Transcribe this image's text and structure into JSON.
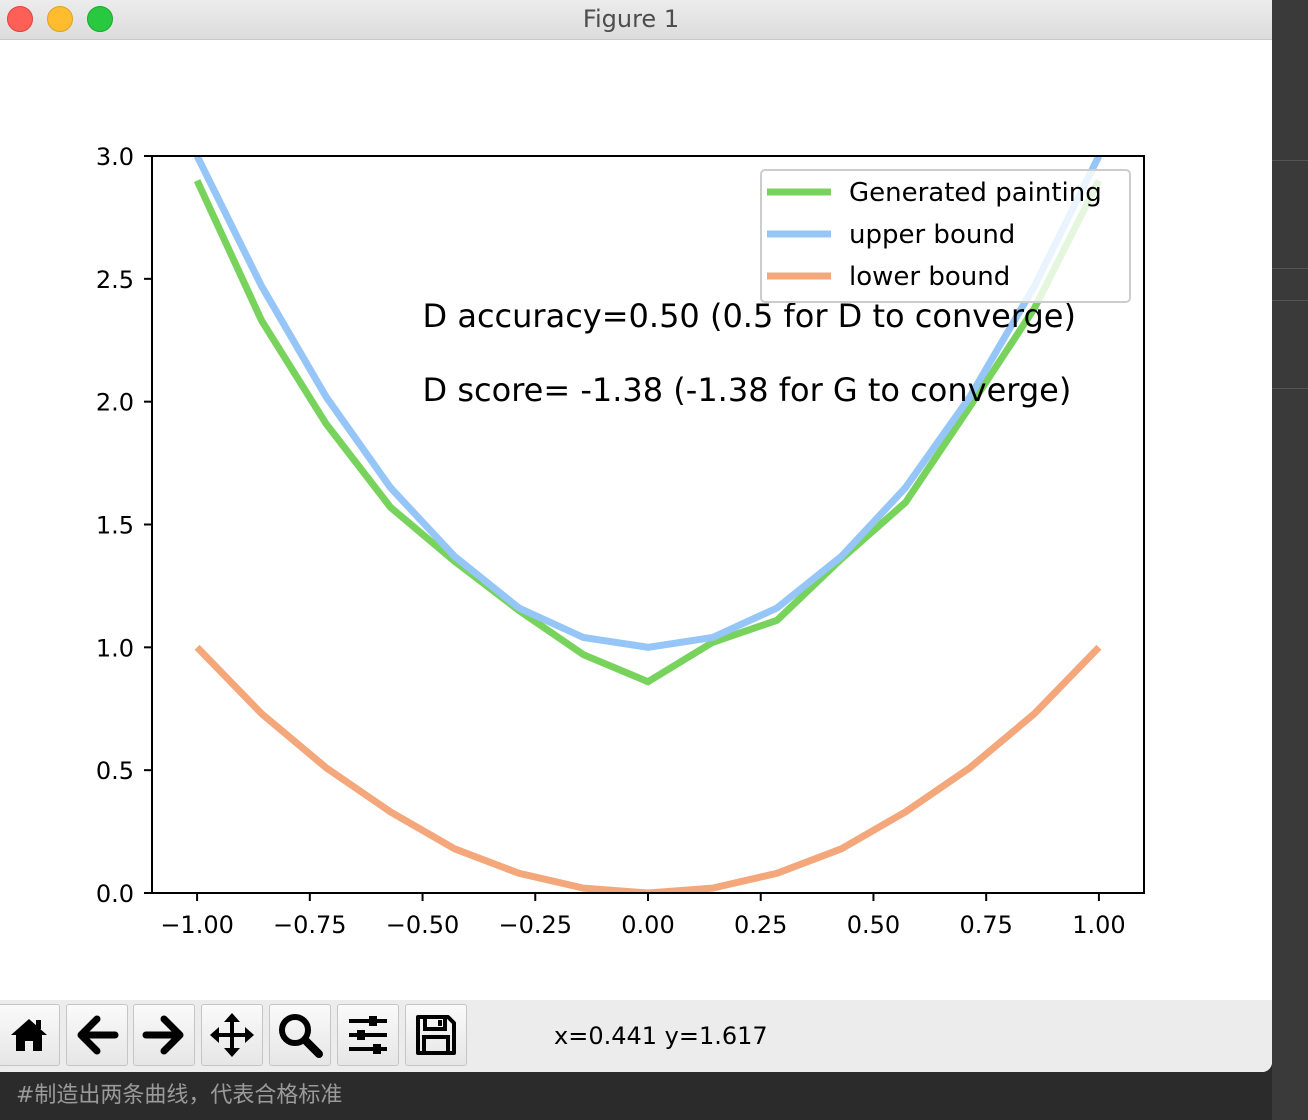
{
  "window": {
    "title": "Figure 1"
  },
  "toolbar": {
    "buttons": [
      {
        "name": "home-button",
        "icon": "home-icon"
      },
      {
        "name": "back-button",
        "icon": "arrow-left-icon"
      },
      {
        "name": "forward-button",
        "icon": "arrow-right-icon"
      },
      {
        "name": "pan-button",
        "icon": "move-icon"
      },
      {
        "name": "zoom-button",
        "icon": "search-icon"
      },
      {
        "name": "configure-button",
        "icon": "sliders-icon"
      },
      {
        "name": "save-button",
        "icon": "save-icon"
      }
    ],
    "coordinates": "x=0.441 y=1.617"
  },
  "editor_comment": "#制造出两条曲线，代表合格标准",
  "chart_data": {
    "type": "line",
    "title": "",
    "xlabel": "",
    "ylabel": "",
    "xlim": [
      -1.1,
      1.1
    ],
    "ylim": [
      0,
      3
    ],
    "xticks": [
      "−1.00",
      "−0.75",
      "−0.50",
      "−0.25",
      "0.00",
      "0.25",
      "0.50",
      "0.75",
      "1.00"
    ],
    "xtick_values": [
      -1,
      -0.75,
      -0.5,
      -0.25,
      0,
      0.25,
      0.5,
      0.75,
      1
    ],
    "yticks": [
      "0.0",
      "0.5",
      "1.0",
      "1.5",
      "2.0",
      "2.5",
      "3.0"
    ],
    "ytick_values": [
      0,
      0.5,
      1,
      1.5,
      2,
      2.5,
      3
    ],
    "x": [
      -1.0,
      -0.857,
      -0.714,
      -0.571,
      -0.429,
      -0.286,
      -0.143,
      0.0,
      0.143,
      0.286,
      0.429,
      0.571,
      0.714,
      0.857,
      1.0
    ],
    "series": [
      {
        "name": "Generated painting",
        "color": "#77d35c",
        "values": [
          2.9,
          2.33,
          1.91,
          1.57,
          1.35,
          1.15,
          0.97,
          0.86,
          1.02,
          1.11,
          1.36,
          1.59,
          1.98,
          2.38,
          2.9
        ]
      },
      {
        "name": "upper bound",
        "color": "#95c6f7",
        "values": [
          3.0,
          2.47,
          2.02,
          1.65,
          1.37,
          1.16,
          1.04,
          1.0,
          1.04,
          1.16,
          1.37,
          1.65,
          2.02,
          2.47,
          3.0
        ]
      },
      {
        "name": "lower bound",
        "color": "#f3a77a",
        "values": [
          1.0,
          0.73,
          0.51,
          0.33,
          0.18,
          0.08,
          0.02,
          0.0,
          0.02,
          0.08,
          0.18,
          0.33,
          0.51,
          0.73,
          1.0
        ]
      }
    ],
    "legend": "top-right",
    "grid": false,
    "annotations": [
      {
        "text": "D accuracy=0.50 (0.5 for D to converge)",
        "x": -0.5,
        "y": 2.3
      },
      {
        "text": "D score= -1.38 (-1.38 for G to converge)",
        "x": -0.5,
        "y": 2.0
      }
    ]
  }
}
